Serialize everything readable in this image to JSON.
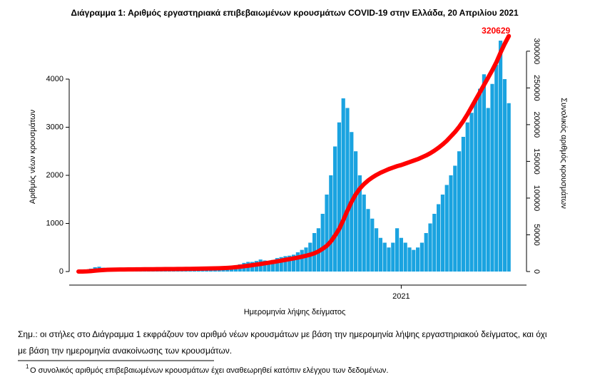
{
  "chart_data": {
    "type": "bar-line",
    "title": "Διάγραμμα 1: Αριθμός εργαστηριακά επιβεβαιωμένων κρουσμάτων COVID-19 στην Ελλάδα, 20 Απριλίου 2021",
    "y_label": "Αριθμός νέων κρουσμάτων",
    "y2_label": "Συνολικός αριθμός κρουσμάτων",
    "x_label": "Ημερομηνία λήψης δείγματος",
    "categories": [
      null,
      null,
      null,
      null,
      null,
      null,
      null,
      null,
      null,
      null,
      null,
      null,
      null,
      null,
      null,
      null,
      null,
      null,
      null,
      null,
      null,
      null,
      null,
      null,
      null,
      null,
      null,
      null,
      null,
      null,
      null,
      null,
      null,
      null,
      null,
      null,
      null,
      null,
      null,
      null,
      null,
      null,
      null,
      null,
      null,
      null,
      null,
      null,
      null,
      null,
      null,
      null,
      null,
      null,
      null,
      null,
      null,
      null,
      null,
      null,
      null,
      null,
      null,
      null,
      null,
      null,
      null,
      null,
      null,
      null,
      null,
      null,
      null,
      null,
      null,
      null,
      null,
      null,
      "2021",
      null,
      null,
      null,
      null,
      null,
      null,
      null,
      null,
      null,
      null,
      null,
      null,
      null,
      null,
      null,
      null,
      null,
      null,
      null,
      null,
      null,
      null,
      null,
      null,
      null,
      null
    ],
    "series": [
      {
        "type": "bar",
        "color": "#1aa3e0",
        "values": [
          5,
          20,
          40,
          60,
          90,
          100,
          80,
          60,
          50,
          40,
          30,
          20,
          15,
          15,
          10,
          10,
          10,
          8,
          10,
          10,
          12,
          10,
          15,
          15,
          15,
          20,
          20,
          25,
          30,
          30,
          35,
          40,
          40,
          45,
          50,
          60,
          80,
          110,
          120,
          150,
          180,
          200,
          200,
          220,
          250,
          230,
          210,
          240,
          280,
          300,
          320,
          330,
          350,
          400,
          450,
          500,
          600,
          800,
          900,
          1200,
          1600,
          2000,
          2600,
          3100,
          3600,
          3400,
          2900,
          2500,
          2000,
          1600,
          1300,
          1100,
          900,
          700,
          600,
          500,
          600,
          900,
          700,
          600,
          500,
          450,
          500,
          600,
          800,
          1000,
          1200,
          1400,
          1600,
          1800,
          2000,
          2200,
          2500,
          2800,
          3100,
          3300,
          3600,
          3800,
          4100,
          3400,
          3900,
          4300,
          4800,
          4000,
          3500
        ]
      },
      {
        "type": "line",
        "axis": "y2",
        "color": "#ff0000",
        "values": [
          0,
          20,
          200,
          600,
          1200,
          1700,
          2100,
          2400,
          2600,
          2700,
          2800,
          2850,
          2900,
          2950,
          3000,
          3050,
          3100,
          3150,
          3200,
          3250,
          3300,
          3350,
          3400,
          3450,
          3500,
          3550,
          3600,
          3700,
          3800,
          3900,
          4000,
          4100,
          4200,
          4350,
          4500,
          4700,
          5000,
          5400,
          5900,
          6500,
          7200,
          7900,
          8700,
          9500,
          10300,
          11200,
          12100,
          13000,
          13900,
          14900,
          15900,
          16900,
          17900,
          19000,
          20200,
          21500,
          23000,
          24800,
          27500,
          31000,
          35000,
          41000,
          49000,
          58000,
          70000,
          83000,
          95000,
          105000,
          113000,
          119000,
          124000,
          128000,
          131500,
          134500,
          137000,
          139500,
          141500,
          143500,
          145000,
          147000,
          149000,
          151000,
          153000,
          155500,
          158000,
          161000,
          164500,
          168500,
          173000,
          178000,
          184000,
          190000,
          197000,
          205000,
          214000,
          224000,
          234000,
          244000,
          254000,
          264000,
          274000,
          285000,
          298000,
          310000,
          320629
        ]
      }
    ],
    "ylim": [
      0,
      5000
    ],
    "yticks": [
      0,
      1000,
      2000,
      3000,
      4000
    ],
    "y2lim": [
      0,
      327500
    ],
    "y2ticks": [
      0,
      50000,
      100000,
      150000,
      200000,
      250000,
      300000
    ],
    "notes": [
      "Σημ.:  οι στήλες στο Διάγραμμα 1 εκφράζουν τον αριθμό νέων κρουσμάτων με βάση την ημερομηνία λήψης εργαστηριακού δείγματος, και όχι",
      "με βάση την ημερομηνία ανακοίνωσης των κρουσμάτων."
    ],
    "footnote_marker": "1",
    "footnote": "Ο συνολικός αριθμός επιβεβαιωμένων κρουσμάτων έχει αναθεωρηθεί κατόπιν ελέγχου των δεδομένων."
  }
}
